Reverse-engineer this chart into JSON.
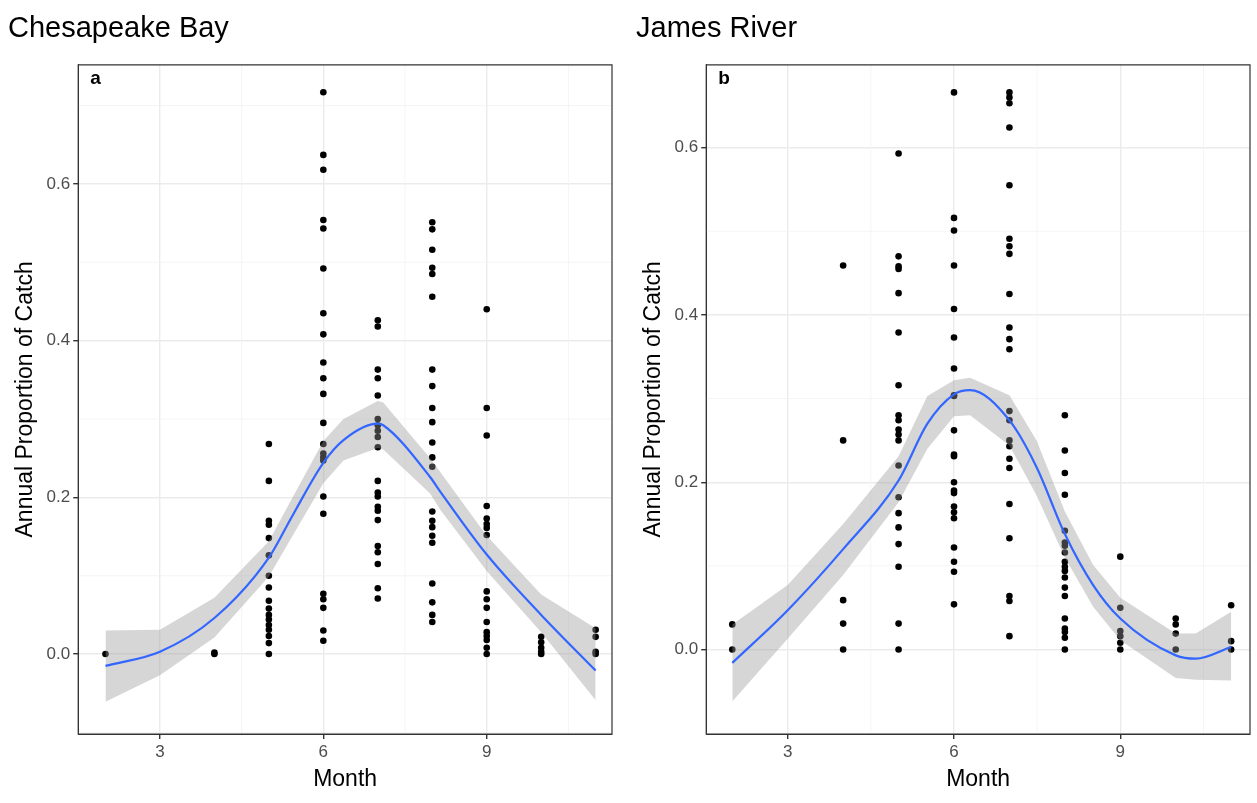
{
  "chart_data": [
    {
      "type": "scatter",
      "title": "Chesapeake Bay",
      "xlabel": "Month",
      "ylabel": "Annual Proportion of Catch",
      "annotations": [
        "a"
      ],
      "xlim": [
        1.5,
        11.3
      ],
      "ylim": [
        -0.102,
        0.752
      ],
      "xticks": [
        3,
        6,
        9
      ],
      "yticks": [
        {
          "value": 0,
          "label": "0.0"
        },
        0.2,
        0.4,
        0.6
      ],
      "grid": true,
      "legend": false,
      "series": [
        {
          "color": "#000000",
          "marker": "circle",
          "x": [
            2,
            4,
            4,
            5,
            5,
            5,
            5,
            5,
            5,
            5,
            5,
            5,
            5,
            5,
            5,
            5,
            5,
            5,
            5,
            5,
            6,
            6,
            6,
            6,
            6,
            6,
            6,
            6,
            6,
            6,
            6,
            6,
            6,
            6,
            6,
            6,
            6,
            6,
            6,
            6,
            6,
            6,
            6,
            7,
            7,
            7,
            7,
            7,
            7,
            7,
            7,
            7,
            7,
            7,
            7,
            7,
            7,
            7,
            7,
            7,
            7,
            7,
            7,
            7,
            8,
            8,
            8,
            8,
            8,
            8,
            8,
            8,
            8,
            8,
            8,
            8,
            8,
            8,
            8,
            8,
            8,
            8,
            8,
            8,
            8,
            8,
            9,
            9,
            9,
            9,
            9,
            9,
            9,
            9,
            9,
            9,
            9,
            9,
            9,
            9,
            9,
            9,
            9,
            10,
            10,
            10,
            10,
            10,
            11,
            11,
            11,
            11
          ],
          "values": [
            0,
            0,
            0.002,
            0.268,
            0.221,
            0.17,
            0.165,
            0.148,
            0.126,
            0.1,
            0.085,
            0.068,
            0.058,
            0.05,
            0.044,
            0.037,
            0.031,
            0.023,
            0.014,
            0,
            0.717,
            0.637,
            0.618,
            0.554,
            0.543,
            0.492,
            0.435,
            0.408,
            0.372,
            0.352,
            0.332,
            0.295,
            0.268,
            0.256,
            0.251,
            0.247,
            0.201,
            0.179,
            0.077,
            0.07,
            0.059,
            0.03,
            0.017,
            0.426,
            0.418,
            0.363,
            0.352,
            0.33,
            0.3,
            0.292,
            0.285,
            0.277,
            0.264,
            0.221,
            0.206,
            0.201,
            0.188,
            0.183,
            0.171,
            0.138,
            0.13,
            0.115,
            0.084,
            0.071,
            0.551,
            0.542,
            0.516,
            0.493,
            0.485,
            0.456,
            0.363,
            0.342,
            0.314,
            0.296,
            0.27,
            0.251,
            0.239,
            0.182,
            0.17,
            0.162,
            0.151,
            0.142,
            0.09,
            0.066,
            0.05,
            0.041,
            0.44,
            0.314,
            0.279,
            0.189,
            0.173,
            0.166,
            0.161,
            0.152,
            0.08,
            0.07,
            0.059,
            0.041,
            0.028,
            0.023,
            0.018,
            0.008,
            0,
            0.022,
            0.015,
            0.008,
            0.003,
            0,
            0.031,
            0.022,
            0.003,
            0
          ]
        },
        {
          "type": "line",
          "color": "#3366ff",
          "x": [
            2.0,
            3.0,
            4.0,
            5.0,
            5.42,
            6.0,
            6.37,
            7.0,
            7.1,
            7.96,
            8.15,
            9.0,
            10.0,
            11.0
          ],
          "values": [
            -0.015,
            0.003,
            0.046,
            0.123,
            0.175,
            0.244,
            0.273,
            0.294,
            0.292,
            0.226,
            0.207,
            0.127,
            0.05,
            -0.021
          ],
          "upper": [
            0.03,
            0.031,
            0.072,
            0.144,
            0.198,
            0.272,
            0.3,
            0.323,
            0.321,
            0.25,
            0.232,
            0.151,
            0.076,
            0.033
          ],
          "lower": [
            -0.061,
            -0.027,
            0.021,
            0.099,
            0.149,
            0.218,
            0.247,
            0.263,
            0.261,
            0.205,
            0.184,
            0.106,
            0.028,
            -0.059
          ]
        }
      ]
    },
    {
      "type": "scatter",
      "title": "James River",
      "xlabel": "Month",
      "ylabel": "Annual Proportion of Catch",
      "annotations": [
        "b"
      ],
      "xlim": [
        1.53,
        11.34
      ],
      "ylim": [
        -0.101,
        0.699
      ],
      "xticks": [
        3,
        6,
        9
      ],
      "yticks": [
        {
          "value": 0,
          "label": "0.0"
        },
        0.2,
        0.4,
        0.6
      ],
      "grid": true,
      "legend": false,
      "series": [
        {
          "color": "#000000",
          "marker": "circle",
          "x": [
            2,
            2,
            4,
            4,
            4,
            4,
            4,
            5,
            5,
            5,
            5,
            5,
            5,
            5,
            5,
            5,
            5,
            5,
            5,
            5,
            5,
            5,
            5,
            5,
            5,
            5,
            5,
            6,
            6,
            6,
            6,
            6,
            6,
            6,
            6,
            6,
            6,
            6,
            6,
            6,
            6,
            6,
            6,
            6,
            6,
            6,
            6,
            6,
            6,
            7,
            7,
            7,
            7,
            7,
            7,
            7,
            7,
            7,
            7,
            7,
            7,
            7,
            7,
            7,
            7,
            7,
            7,
            7,
            7,
            7,
            7,
            7,
            8,
            8,
            8,
            8,
            8,
            8,
            8,
            8,
            8,
            8,
            8,
            8,
            8,
            8,
            8,
            8,
            8,
            8,
            8,
            9,
            9,
            9,
            9,
            9,
            9,
            10,
            10,
            10,
            10,
            11,
            11,
            11
          ],
          "values": [
            0.03,
            0,
            0.459,
            0.25,
            0.059,
            0.031,
            0,
            0.593,
            0.47,
            0.458,
            0.455,
            0.426,
            0.379,
            0.316,
            0.28,
            0.274,
            0.263,
            0.257,
            0.25,
            0.22,
            0.182,
            0.163,
            0.146,
            0.126,
            0.099,
            0.031,
            0,
            0.666,
            0.516,
            0.501,
            0.459,
            0.407,
            0.373,
            0.336,
            0.304,
            0.303,
            0.262,
            0.233,
            0.231,
            0.2,
            0.19,
            0.187,
            0.171,
            0.164,
            0.157,
            0.122,
            0.105,
            0.093,
            0.054,
            0.666,
            0.66,
            0.653,
            0.624,
            0.555,
            0.491,
            0.482,
            0.473,
            0.425,
            0.385,
            0.371,
            0.359,
            0.285,
            0.274,
            0.25,
            0.243,
            0.228,
            0.217,
            0.174,
            0.133,
            0.064,
            0.058,
            0.016,
            0.28,
            0.238,
            0.211,
            0.185,
            0.142,
            0.128,
            0.124,
            0.116,
            0.105,
            0.099,
            0.094,
            0.086,
            0.074,
            0.064,
            0.037,
            0.025,
            0.021,
            0.014,
            0,
            0.111,
            0.05,
            0.022,
            0.016,
            0.008,
            0,
            0.037,
            0.03,
            0.019,
            0,
            0.053,
            0.01,
            0
          ]
        },
        {
          "type": "line",
          "color": "#3366ff",
          "x": [
            2.0,
            3.0,
            4.0,
            5.0,
            5.52,
            6.0,
            6.29,
            7.0,
            7.49,
            8.0,
            8.51,
            9.0,
            10.0,
            10.36,
            11.0
          ],
          "values": [
            -0.016,
            0.047,
            0.12,
            0.202,
            0.27,
            0.305,
            0.31,
            0.274,
            0.218,
            0.138,
            0.077,
            0.037,
            -0.007,
            -0.011,
            0.003
          ],
          "upper": [
            0.03,
            0.077,
            0.15,
            0.231,
            0.303,
            0.322,
            0.325,
            0.304,
            0.25,
            0.165,
            0.101,
            0.062,
            0.019,
            0.019,
            0.045
          ],
          "lower": [
            -0.062,
            0.013,
            0.089,
            0.176,
            0.24,
            0.279,
            0.28,
            0.244,
            0.184,
            0.11,
            0.051,
            0.011,
            -0.034,
            -0.036,
            -0.037
          ]
        }
      ]
    }
  ]
}
